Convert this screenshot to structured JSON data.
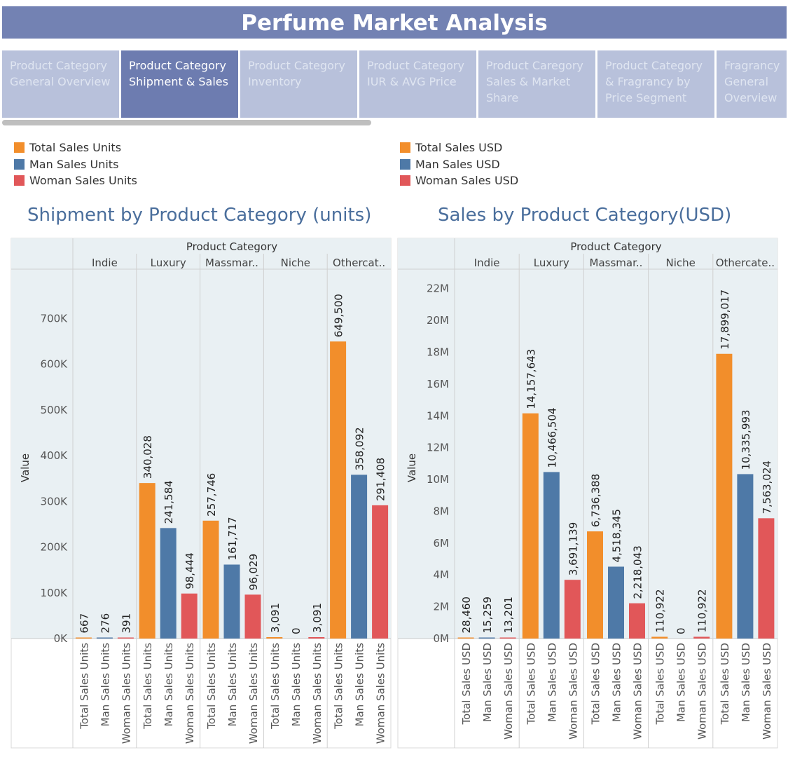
{
  "title": "Perfume Market Analysis",
  "tabs": [
    {
      "label": "Product Category General Overview",
      "active": false
    },
    {
      "label": "Product Category Shipment & Sales",
      "active": true
    },
    {
      "label": "Product Category Inventory",
      "active": false
    },
    {
      "label": "Product Category IUR & AVG Price",
      "active": false
    },
    {
      "label": "Product Caregory Sales & Market Share",
      "active": false
    },
    {
      "label": "Product Category & Fragrancy by Price Segment",
      "active": false
    },
    {
      "label": "Fragrancy General Overview",
      "active": false
    }
  ],
  "colors": {
    "total": "#f28e2b",
    "man": "#4e79a7",
    "woman": "#e15759",
    "panel": "#e9f0f3",
    "title_bar": "#7382b3"
  },
  "chart_data": [
    {
      "type": "bar",
      "title": "Shipment  by Product Category (units)",
      "header": "Product Category",
      "ylabel": "Value",
      "ylim": [
        0,
        800000
      ],
      "yticks": [
        {
          "value": 0,
          "label": "0K"
        },
        {
          "value": 100000,
          "label": "100K"
        },
        {
          "value": 200000,
          "label": "200K"
        },
        {
          "value": 300000,
          "label": "300K"
        },
        {
          "value": 400000,
          "label": "400K"
        },
        {
          "value": 500000,
          "label": "500K"
        },
        {
          "value": 600000,
          "label": "600K"
        },
        {
          "value": 700000,
          "label": "700K"
        }
      ],
      "groups": [
        "Indie",
        "Luxury",
        "Massmar..",
        "Niche",
        "Othercat.."
      ],
      "bar_labels": [
        "Total Sales Units",
        "Man Sales Units",
        "Woman Sales Units"
      ],
      "legend": [
        "Total Sales Units",
        "Man Sales Units",
        "Woman Sales Units"
      ],
      "series": [
        {
          "name": "Total Sales Units",
          "values": [
            667,
            340028,
            257746,
            3091,
            649500
          ],
          "labels": [
            "667",
            "340,028",
            "257,746",
            "3,091",
            "649,500"
          ]
        },
        {
          "name": "Man Sales Units",
          "values": [
            276,
            241584,
            161717,
            0,
            358092
          ],
          "labels": [
            "276",
            "241,584",
            "161,717",
            "0",
            "358,092"
          ]
        },
        {
          "name": "Woman Sales Units",
          "values": [
            391,
            98444,
            96029,
            3091,
            291408
          ],
          "labels": [
            "391",
            "98,444",
            "96,029",
            "3,091",
            "291,408"
          ]
        }
      ]
    },
    {
      "type": "bar",
      "title": "Sales  by Product Category(USD)",
      "header": "Product Category",
      "ylabel": "Value",
      "ylim": [
        0,
        23000000
      ],
      "yticks": [
        {
          "value": 0,
          "label": "0M"
        },
        {
          "value": 2000000,
          "label": "2M"
        },
        {
          "value": 4000000,
          "label": "4M"
        },
        {
          "value": 6000000,
          "label": "6M"
        },
        {
          "value": 8000000,
          "label": "8M"
        },
        {
          "value": 10000000,
          "label": "10M"
        },
        {
          "value": 12000000,
          "label": "12M"
        },
        {
          "value": 14000000,
          "label": "14M"
        },
        {
          "value": 16000000,
          "label": "16M"
        },
        {
          "value": 18000000,
          "label": "18M"
        },
        {
          "value": 20000000,
          "label": "20M"
        },
        {
          "value": 22000000,
          "label": "22M"
        }
      ],
      "groups": [
        "Indie",
        "Luxury",
        "Massmar..",
        "Niche",
        "Othercate.."
      ],
      "bar_labels": [
        "Total Sales USD",
        "Man Sales USD",
        "Woman Sales USD"
      ],
      "legend": [
        "Total Sales USD",
        "Man Sales USD",
        "Woman Sales USD"
      ],
      "series": [
        {
          "name": "Total Sales USD",
          "values": [
            28460,
            14157643,
            6736388,
            110922,
            17899017
          ],
          "labels": [
            "28,460",
            "14,157,643",
            "6,736,388",
            "110,922",
            "17,899,017"
          ]
        },
        {
          "name": "Man Sales USD",
          "values": [
            15259,
            10466504,
            4518345,
            0,
            10335993
          ],
          "labels": [
            "15,259",
            "10,466,504",
            "4,518,345",
            "0",
            "10,335,993"
          ]
        },
        {
          "name": "Woman Sales USD",
          "values": [
            13201,
            3691139,
            2218043,
            110922,
            7563024
          ],
          "labels": [
            "13,201",
            "3,691,139",
            "2,218,043",
            "110,922",
            "7,563,024"
          ]
        }
      ]
    }
  ]
}
